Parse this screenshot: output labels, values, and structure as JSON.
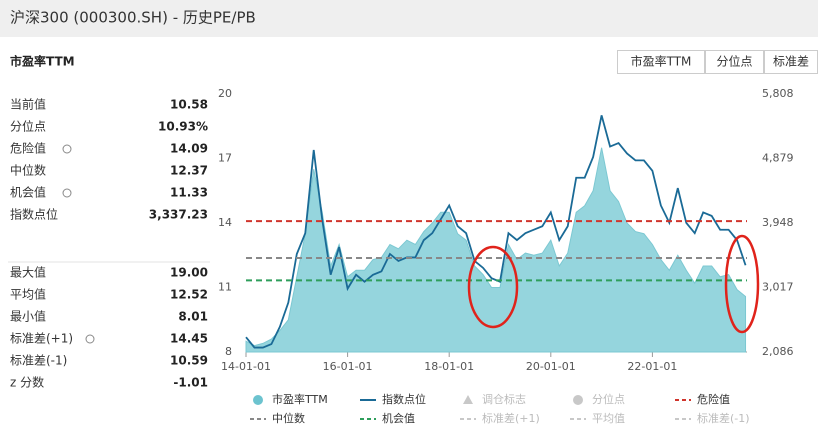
{
  "header": {
    "title": "沪深300 (000300.SH) - 历史PE/PB"
  },
  "panel_title": "市盈率TTM",
  "tabs": [
    "市盈率TTM",
    "分位点",
    "标准差"
  ],
  "stats": [
    [
      [
        "当前值",
        "10.58"
      ],
      [
        "分位点",
        "10.93%"
      ],
      [
        "危险值",
        "14.09"
      ],
      [
        "中位数",
        "12.37"
      ],
      [
        "机会值",
        "11.33"
      ],
      [
        "指数点位",
        "3,337.23"
      ]
    ],
    [
      [
        "最大值",
        "19.00"
      ],
      [
        "平均值",
        "12.52"
      ],
      [
        "最小值",
        "8.01"
      ],
      [
        "标准差(+1)",
        "14.45"
      ],
      [
        "标准差(-1)",
        "10.59"
      ],
      [
        "z 分数",
        "-1.01"
      ]
    ]
  ],
  "chart_data": {
    "type": "combo",
    "x": [
      "14-01-01",
      "14-03-01",
      "14-05-01",
      "14-07-01",
      "14-09-01",
      "14-11-01",
      "15-01-01",
      "15-03-01",
      "15-05-01",
      "15-07-01",
      "15-09-01",
      "15-11-01",
      "16-01-01",
      "16-03-01",
      "16-05-01",
      "16-07-01",
      "16-09-01",
      "16-11-01",
      "17-01-01",
      "17-03-01",
      "17-05-01",
      "17-07-01",
      "17-09-01",
      "17-11-01",
      "18-01-01",
      "18-03-01",
      "18-05-01",
      "18-07-01",
      "18-09-01",
      "18-11-01",
      "19-01-01",
      "19-03-01",
      "19-05-01",
      "19-07-01",
      "19-09-01",
      "19-11-01",
      "20-01-01",
      "20-03-01",
      "20-05-01",
      "20-07-01",
      "20-09-01",
      "20-11-01",
      "21-01-01",
      "21-03-01",
      "21-05-01",
      "21-07-01",
      "21-09-01",
      "21-11-01",
      "22-01-01",
      "22-03-01",
      "22-05-01",
      "22-07-01",
      "22-09-01",
      "22-11-01",
      "23-01-01",
      "23-03-01",
      "23-05-01",
      "23-07-01",
      "23-09-01",
      "23-11-01"
    ],
    "series": [
      {
        "name": "市盈率TTM",
        "type": "area",
        "color": "#95d5dd",
        "values": [
          8.5,
          8.3,
          8.4,
          8.6,
          9.0,
          9.5,
          11.5,
          13.5,
          16.5,
          14.5,
          12.0,
          13.0,
          11.5,
          11.8,
          11.8,
          12.3,
          12.4,
          13.0,
          12.8,
          13.2,
          13.0,
          13.6,
          14.0,
          14.5,
          14.5,
          13.5,
          13.2,
          12.0,
          11.6,
          11.0,
          11.0,
          13.0,
          12.3,
          12.6,
          12.5,
          12.6,
          13.2,
          12.0,
          12.6,
          14.5,
          14.8,
          15.5,
          17.5,
          15.5,
          15.0,
          14.0,
          13.6,
          13.5,
          13.0,
          12.3,
          11.8,
          12.5,
          11.8,
          11.2,
          12.0,
          12.0,
          11.5,
          11.6,
          10.9,
          10.58
        ]
      },
      {
        "name": "指数点位",
        "type": "line",
        "axis": "y2",
        "color": "#1a6a96",
        "values": [
          2300,
          2150,
          2150,
          2200,
          2450,
          2800,
          3500,
          3800,
          5000,
          4000,
          3200,
          3600,
          3000,
          3200,
          3100,
          3200,
          3250,
          3500,
          3400,
          3450,
          3450,
          3700,
          3800,
          4000,
          4200,
          3900,
          3800,
          3400,
          3300,
          3150,
          3100,
          3800,
          3700,
          3800,
          3850,
          3900,
          4100,
          3700,
          3900,
          4600,
          4600,
          4900,
          5500,
          5050,
          5100,
          4950,
          4850,
          4850,
          4700,
          4200,
          3950,
          4450,
          3950,
          3800,
          4100,
          4050,
          3850,
          3850,
          3700,
          3337.23
        ]
      }
    ],
    "reference_lines": [
      {
        "name": "危险值",
        "value": 14.09,
        "color": "#d0342c"
      },
      {
        "name": "中位数",
        "value": 12.37,
        "color": "#888888"
      },
      {
        "name": "机会值",
        "value": 11.33,
        "color": "#2e9e5b"
      }
    ],
    "inactive_legend": [
      {
        "name": "调仓标志",
        "symbol": "triangle"
      },
      {
        "name": "分位点",
        "symbol": "circle"
      },
      {
        "name": "标准差(+1)",
        "symbol": "dash"
      },
      {
        "name": "平均值",
        "symbol": "dash"
      },
      {
        "name": "标准差(-1)",
        "symbol": "dash"
      }
    ],
    "ylim": [
      8,
      20
    ],
    "yticks": [
      8,
      11,
      14,
      17,
      20
    ],
    "y2lim": [
      2086,
      5808
    ],
    "y2ticks": [
      {
        "value": 2086,
        "label": "2,086"
      },
      {
        "value": 3017,
        "label": "3,017"
      },
      {
        "value": 3948,
        "label": "3,948"
      },
      {
        "value": 4879,
        "label": "4,879"
      },
      {
        "value": 5808,
        "label": "5,808"
      }
    ],
    "xticks": [
      "14-01-01",
      "16-01-01",
      "18-01-01",
      "20-01-01",
      "22-01-01"
    ],
    "grid": false
  }
}
